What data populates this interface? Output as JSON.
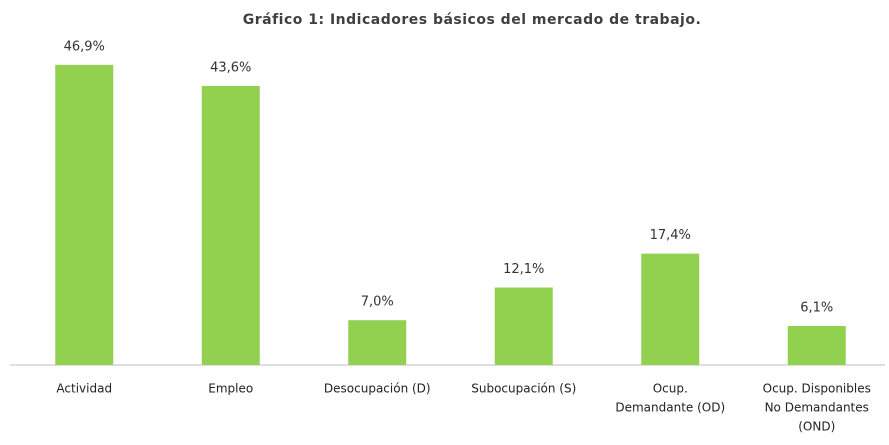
{
  "chart_data": {
    "type": "bar",
    "title": "Gráfico 1: Indicadores básicos del mercado de trabajo.",
    "categories": [
      [
        "Actividad"
      ],
      [
        "Empleo"
      ],
      [
        "Desocupación (D)"
      ],
      [
        "Subocupación (S)"
      ],
      [
        "Ocup.",
        "Demandante (OD)"
      ],
      [
        "Ocup. Disponibles",
        "No Demandantes",
        "(OND)"
      ]
    ],
    "values": [
      46.9,
      43.6,
      7.0,
      12.1,
      17.4,
      6.1
    ],
    "value_labels": [
      "46,9%",
      "43,6%",
      "7,0%",
      "12,1%",
      "17,4%",
      "6,1%"
    ],
    "color": "#92d050"
  }
}
